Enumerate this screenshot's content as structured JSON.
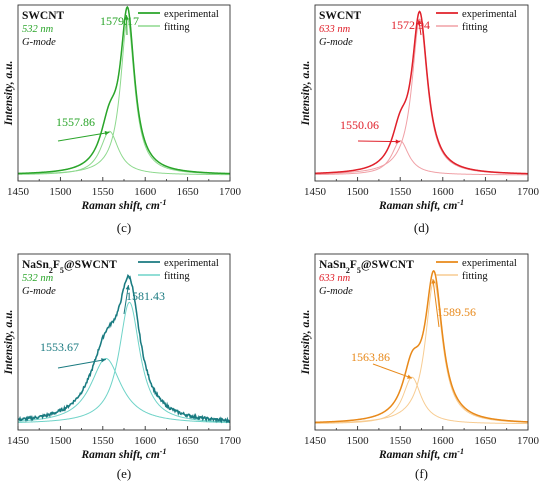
{
  "chart_data": [
    {
      "type": "line",
      "panel_label": "(c)",
      "title": "SWCNT",
      "excitation": "532 nm",
      "mode": "G-mode",
      "xlabel": "Raman shift, cm",
      "xlabel_sup": "-1",
      "ylabel": "Intensity, a.u.",
      "xlim": [
        1450,
        1700
      ],
      "xticks": [
        "1450",
        "1500",
        "1550",
        "1600",
        "1650",
        "1700"
      ],
      "colors": {
        "experimental": "#2aa52a",
        "fitting": "#8ed98e",
        "text": "#2aa52a"
      },
      "legend": {
        "position": "top-right",
        "items": [
          "experimental",
          "fitting"
        ]
      },
      "noise": 0,
      "peaks": [
        {
          "label": "1579.17",
          "center": 1579.17,
          "width": 10,
          "height": 1.0
        },
        {
          "label": "1557.86",
          "center": 1557.86,
          "width": 13,
          "height": 0.28
        }
      ]
    },
    {
      "type": "line",
      "panel_label": "(d)",
      "title": "SWCNT",
      "excitation": "633 nm",
      "mode": "G-mode",
      "xlabel": "Raman shift, cm",
      "xlabel_sup": "-1",
      "ylabel": "Intensity, a.u.",
      "xlim": [
        1450,
        1700
      ],
      "xticks": [
        "1450",
        "1500",
        "1550",
        "1600",
        "1650",
        "1700"
      ],
      "colors": {
        "experimental": "#e0202a",
        "fitting": "#f0a0a6",
        "text": "#e0202a"
      },
      "legend": {
        "position": "top-right",
        "items": [
          "experimental",
          "fitting"
        ]
      },
      "noise": 0,
      "peaks": [
        {
          "label": "1572.94",
          "center": 1572.94,
          "width": 11,
          "height": 1.0
        },
        {
          "label": "1550.06",
          "center": 1550.06,
          "width": 12,
          "height": 0.22
        }
      ]
    },
    {
      "type": "line",
      "panel_label": "(e)",
      "title": "NaSn",
      "title_parts": [
        "NaSn",
        "2",
        "F",
        "5",
        "@SWCNT"
      ],
      "excitation": "532 nm",
      "mode": "G-mode",
      "xlabel": "Raman shift, cm",
      "xlabel_sup": "-1",
      "ylabel": "Intensity, a.u.",
      "xlim": [
        1450,
        1700
      ],
      "xticks": [
        "1450",
        "1500",
        "1550",
        "1600",
        "1650",
        "1700"
      ],
      "colors": {
        "experimental": "#1a7a80",
        "fitting": "#6fd3c8",
        "text": "#1a7a80",
        "excitation_text": "#2aa52a"
      },
      "legend": {
        "position": "top-right",
        "items": [
          "experimental",
          "fitting"
        ]
      },
      "noise": 0.02,
      "peaks": [
        {
          "label": "1581.43",
          "center": 1581.43,
          "width": 15,
          "height": 0.78
        },
        {
          "label": "1553.67",
          "center": 1553.67,
          "width": 22,
          "height": 0.42
        }
      ]
    },
    {
      "type": "line",
      "panel_label": "(f)",
      "title": "NaSn",
      "title_parts": [
        "NaSn",
        "2",
        "F",
        "5",
        "@SWCNT"
      ],
      "excitation": "633 nm",
      "mode": "G-mode",
      "xlabel": "Raman shift, cm",
      "xlabel_sup": "-1",
      "ylabel": "Intensity, a.u.",
      "xlim": [
        1450,
        1700
      ],
      "xticks": [
        "1450",
        "1500",
        "1550",
        "1600",
        "1650",
        "1700"
      ],
      "colors": {
        "experimental": "#e8891a",
        "fitting": "#f7cc92",
        "text": "#e8891a",
        "excitation_text": "#e0202a"
      },
      "legend": {
        "position": "top-right",
        "items": [
          "experimental",
          "fitting"
        ]
      },
      "noise": 0,
      "peaks": [
        {
          "label": "1589.56",
          "center": 1589.56,
          "width": 12,
          "height": 0.92
        },
        {
          "label": "1563.86",
          "center": 1563.86,
          "width": 13,
          "height": 0.3
        }
      ]
    }
  ]
}
